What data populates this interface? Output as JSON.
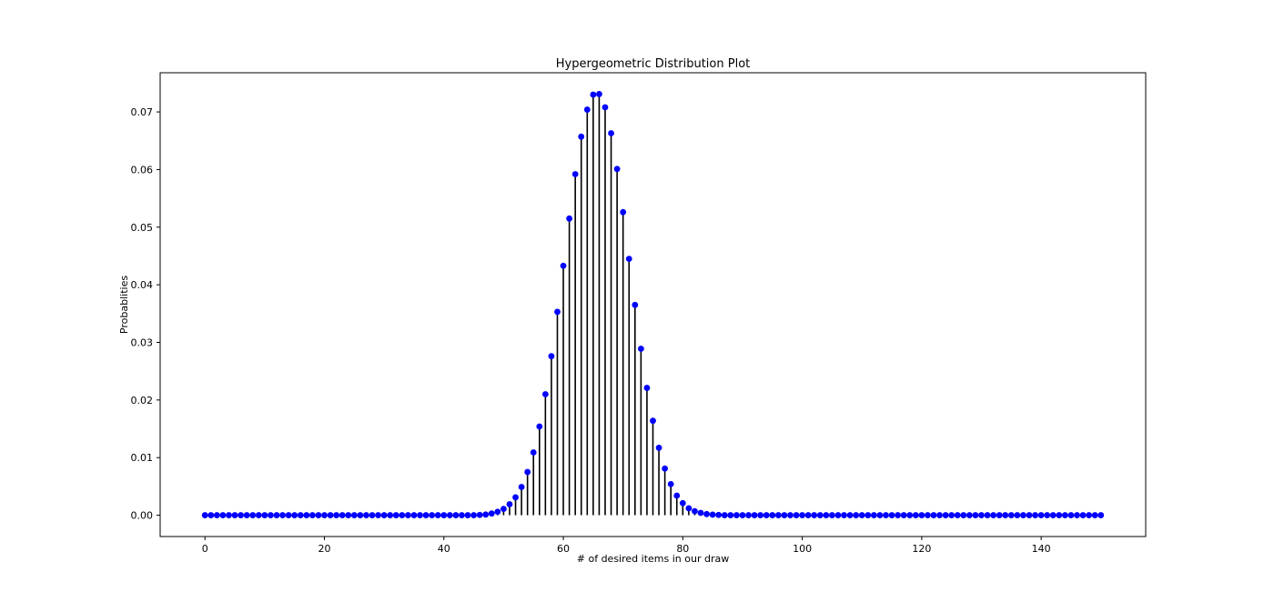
{
  "chart_data": {
    "type": "stem",
    "title": "Hypergeometric Distribution Plot",
    "xlabel": "# of desired items in our draw",
    "ylabel": "Probablities",
    "xlim": [
      -7.5,
      157.5
    ],
    "ylim": [
      -0.0037,
      0.0768
    ],
    "x_ticks": [
      0,
      20,
      40,
      60,
      80,
      100,
      120,
      140
    ],
    "x_tick_labels": [
      "0",
      "20",
      "40",
      "60",
      "80",
      "100",
      "120",
      "140"
    ],
    "y_ticks": [
      0.0,
      0.01,
      0.02,
      0.03,
      0.04,
      0.05,
      0.06,
      0.07
    ],
    "y_tick_labels": [
      "0.00",
      "0.01",
      "0.02",
      "0.03",
      "0.04",
      "0.05",
      "0.06",
      "0.07"
    ],
    "grid": false,
    "legend": "none",
    "marker_color": "#0000ff",
    "stem_color": "#000000",
    "series": [
      {
        "x_start": 0,
        "x_step": 1,
        "values": [
          0,
          0,
          0,
          0,
          0,
          0,
          0,
          0,
          0,
          0,
          0,
          0,
          0,
          0,
          0,
          0,
          0,
          0,
          0,
          0,
          0,
          0,
          0,
          0,
          0,
          0,
          0,
          0,
          0,
          0,
          0,
          0,
          0,
          0,
          0,
          0,
          0,
          0,
          0,
          0,
          0,
          0,
          0,
          0,
          0,
          0,
          5e-05,
          0.00012,
          0.0003,
          0.0006,
          0.0011,
          0.0019,
          0.0031,
          0.0049,
          0.0075,
          0.0109,
          0.0154,
          0.021,
          0.0276,
          0.0353,
          0.0433,
          0.0515,
          0.0592,
          0.0657,
          0.0704,
          0.073,
          0.0731,
          0.0708,
          0.0663,
          0.0601,
          0.0526,
          0.0445,
          0.0365,
          0.0289,
          0.0221,
          0.0164,
          0.0117,
          0.0081,
          0.0054,
          0.0034,
          0.0021,
          0.0012,
          0.0007,
          0.0004,
          0.0002,
          0.0001,
          5e-05,
          0,
          0,
          0,
          0,
          0,
          0,
          0,
          0,
          0,
          0,
          0,
          0,
          0,
          0,
          0,
          0,
          0,
          0,
          0,
          0,
          0,
          0,
          0,
          0,
          0,
          0,
          0,
          0,
          0,
          0,
          0,
          0,
          0,
          0,
          0,
          0,
          0,
          0,
          0,
          0,
          0,
          0,
          0,
          0,
          0,
          0,
          0,
          0,
          0,
          0,
          0,
          0,
          0,
          0,
          0,
          0,
          0,
          0,
          0,
          0,
          0,
          0,
          0,
          0
        ]
      }
    ]
  }
}
